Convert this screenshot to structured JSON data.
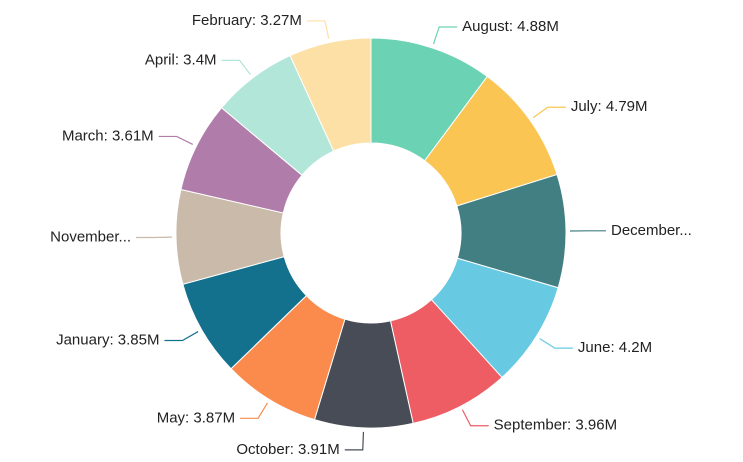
{
  "chart_data": {
    "type": "donut",
    "labels": [
      "August: 4.88M",
      "July: 4.79M",
      "December...",
      "June: 4.2M",
      "September: 3.96M",
      "October: 3.91M",
      "May: 3.87M",
      "January: 3.85M",
      "November...",
      "March: 3.61M",
      "April: 3.4M",
      "February: 3.27M"
    ],
    "values": [
      4.88,
      4.79,
      4.5,
      4.2,
      3.96,
      3.91,
      3.87,
      3.85,
      3.75,
      3.61,
      3.4,
      3.27
    ],
    "colors": [
      "#6cd2b4",
      "#fbc553",
      "#427f83",
      "#67c9e2",
      "#ee5c64",
      "#474c56",
      "#fb8a4d",
      "#13718d",
      "#c9baa9",
      "#b07caa",
      "#b2e6d9",
      "#fde0a6"
    ]
  }
}
